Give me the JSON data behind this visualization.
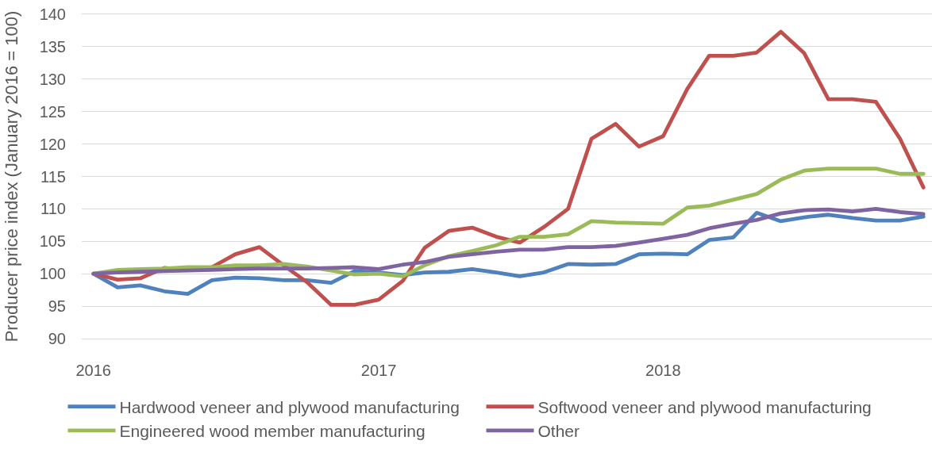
{
  "chart_data": {
    "type": "line",
    "ylabel": "Producer price index (January 2016 = 100)",
    "x": [
      "2016-01",
      "2016-02",
      "2016-03",
      "2016-04",
      "2016-05",
      "2016-06",
      "2016-07",
      "2016-08",
      "2016-09",
      "2016-10",
      "2016-11",
      "2016-12",
      "2017-01",
      "2017-02",
      "2017-03",
      "2017-04",
      "2017-05",
      "2017-06",
      "2017-07",
      "2017-08",
      "2017-09",
      "2017-10",
      "2017-11",
      "2017-12",
      "2018-01",
      "2018-02",
      "2018-03",
      "2018-04",
      "2018-05",
      "2018-06",
      "2018-07",
      "2018-08",
      "2018-09",
      "2018-10",
      "2018-11",
      "2018-12"
    ],
    "xlim": [
      "2015-12-17",
      "2018-12-12"
    ],
    "xticks": [
      {
        "value": "2016-01",
        "label": "2016"
      },
      {
        "value": "2017-01",
        "label": "2017"
      },
      {
        "value": "2018-01",
        "label": "2018"
      }
    ],
    "ylim": [
      90,
      140
    ],
    "yticks": [
      90,
      95,
      100,
      105,
      110,
      115,
      120,
      125,
      130,
      135,
      140
    ],
    "grid": "y",
    "legend": "bottom",
    "marker": "none",
    "line_style": "solid",
    "series": [
      {
        "name": "Hardwood veneer and plywood manufacturing",
        "color": "#4f81bd",
        "values": [
          100,
          97.9,
          98.2,
          97.3,
          96.9,
          99.0,
          99.4,
          99.3,
          99.0,
          99.0,
          98.6,
          100.4,
          100.2,
          99.8,
          100.2,
          100.3,
          100.7,
          100.2,
          99.6,
          100.2,
          101.5,
          101.4,
          101.5,
          103.0,
          103.1,
          103.0,
          105.2,
          105.6,
          109.4,
          108.1,
          108.7,
          109.1,
          108.6,
          108.2,
          108.2,
          108.8
        ]
      },
      {
        "name": "Softwood veneer and plywood manufacturing",
        "color": "#c0504d",
        "values": [
          100,
          99.1,
          99.3,
          100.9,
          100.6,
          101.0,
          103.0,
          104.1,
          101.3,
          98.7,
          95.2,
          95.2,
          96.0,
          98.9,
          104.0,
          106.6,
          107.1,
          105.7,
          104.8,
          107.2,
          110.0,
          120.8,
          123.1,
          119.6,
          121.2,
          128.5,
          133.6,
          133.6,
          134.1,
          137.3,
          134.0,
          126.9,
          126.9,
          126.5,
          120.8,
          113.3
        ]
      },
      {
        "name": "Engineered wood member manufacturing",
        "color": "#9bbb59",
        "values": [
          100,
          100.6,
          100.7,
          100.8,
          101.0,
          101.0,
          101.3,
          101.3,
          101.5,
          101.1,
          100.5,
          99.9,
          100.0,
          99.6,
          101.3,
          102.7,
          103.5,
          104.4,
          105.7,
          105.7,
          106.1,
          108.1,
          107.9,
          107.8,
          107.7,
          110.2,
          110.5,
          111.4,
          112.3,
          114.5,
          115.9,
          116.2,
          116.2,
          116.2,
          115.4,
          115.4
        ]
      },
      {
        "name": "Other",
        "color": "#8064a2",
        "values": [
          100,
          100.2,
          100.3,
          100.4,
          100.5,
          100.6,
          100.7,
          100.8,
          100.8,
          100.8,
          100.9,
          101.0,
          100.7,
          101.4,
          101.8,
          102.6,
          103.0,
          103.4,
          103.7,
          103.7,
          104.1,
          104.1,
          104.3,
          104.8,
          105.4,
          106.0,
          107.0,
          107.7,
          108.3,
          109.3,
          109.8,
          109.9,
          109.6,
          110.0,
          109.5,
          109.2
        ]
      }
    ]
  }
}
